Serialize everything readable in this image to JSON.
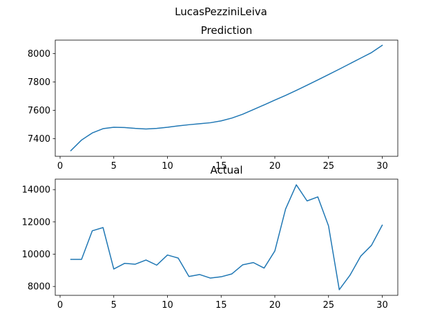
{
  "figure": {
    "suptitle": "LucasPezziniLeiva"
  },
  "colors": {
    "series": "#1f77b4",
    "axes": "#000000",
    "background": "#ffffff"
  },
  "chart_data": [
    {
      "type": "line",
      "title": "Prediction",
      "xlabel": "",
      "ylabel": "",
      "xlim": [
        -0.45,
        31.45
      ],
      "ylim": [
        7275,
        8095
      ],
      "xticks": [
        0,
        5,
        10,
        15,
        20,
        25,
        30
      ],
      "yticks": [
        7400,
        7600,
        7800,
        8000
      ],
      "grid": false,
      "series": [
        {
          "x": [
            1,
            2,
            3,
            4,
            5,
            6,
            7,
            8,
            9,
            10,
            11,
            12,
            13,
            14,
            15,
            16,
            17,
            18,
            19,
            20,
            21,
            22,
            23,
            24,
            25,
            26,
            27,
            28,
            29,
            30
          ],
          "values": [
            7315,
            7390,
            7440,
            7470,
            7480,
            7478,
            7472,
            7468,
            7472,
            7480,
            7490,
            7498,
            7505,
            7512,
            7525,
            7545,
            7572,
            7605,
            7638,
            7672,
            7705,
            7740,
            7777,
            7814,
            7852,
            7890,
            7929,
            7968,
            8007,
            8058
          ]
        }
      ]
    },
    {
      "type": "line",
      "title": "Actual",
      "xlabel": "",
      "ylabel": "",
      "xlim": [
        -0.45,
        31.45
      ],
      "ylim": [
        7450,
        14650
      ],
      "xticks": [
        0,
        5,
        10,
        15,
        20,
        25,
        30
      ],
      "yticks": [
        8000,
        10000,
        12000,
        14000
      ],
      "grid": false,
      "series": [
        {
          "x": [
            1,
            2,
            3,
            4,
            5,
            6,
            7,
            8,
            9,
            10,
            11,
            12,
            13,
            14,
            15,
            16,
            17,
            18,
            19,
            20,
            21,
            22,
            23,
            24,
            25,
            26,
            27,
            28,
            29,
            30
          ],
          "values": [
            9680,
            9680,
            11450,
            11650,
            9080,
            9430,
            9380,
            9640,
            9320,
            9950,
            9760,
            8620,
            8740,
            8520,
            8600,
            8780,
            9340,
            9480,
            9140,
            10200,
            12800,
            14300,
            13300,
            13550,
            11750,
            7800,
            8700,
            9880,
            10550,
            11800
          ]
        }
      ]
    }
  ]
}
